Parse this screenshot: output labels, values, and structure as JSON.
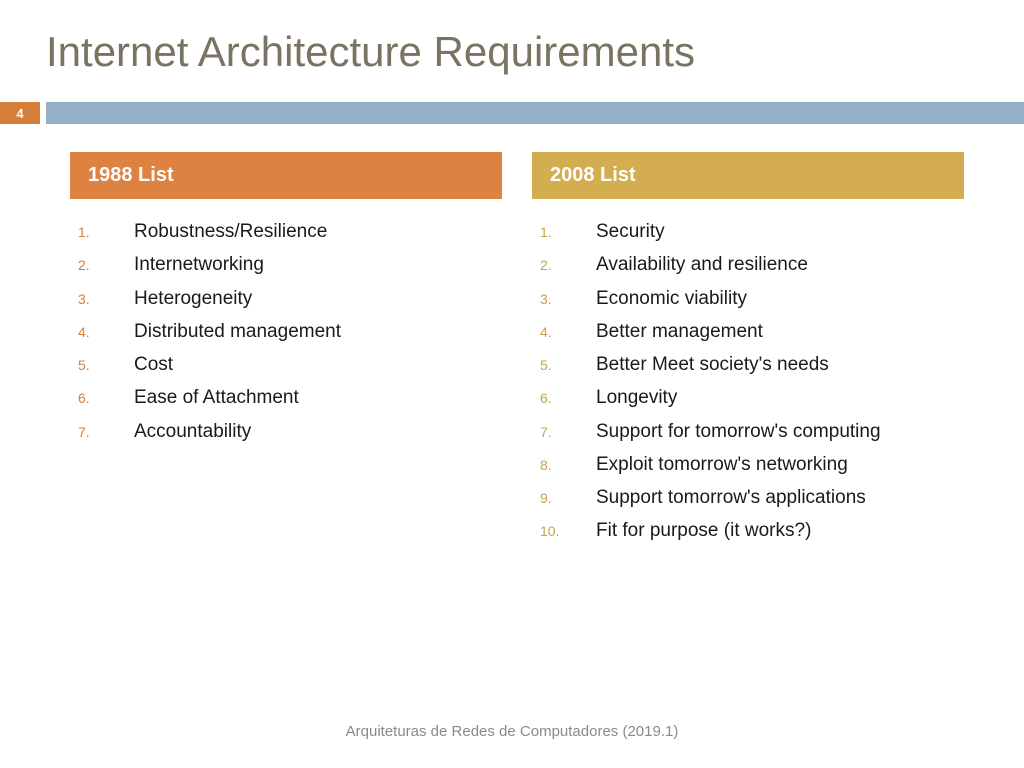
{
  "title": "Internet Architecture Requirements",
  "page_number": "4",
  "colors": {
    "title_text": "#7a7362",
    "page_num_bg": "#d57f3a",
    "divider_bg": "#94afc6",
    "header_orange": "#dd8241",
    "header_gold": "#d3ad4f",
    "list_marker_orange": "#d57f3a",
    "list_marker_gold": "#c9a246",
    "footer_text": "#8a8a8a"
  },
  "left": {
    "header": "1988 List",
    "items": [
      "Robustness/Resilience",
      "Internetworking",
      "Heterogeneity",
      "Distributed management",
      "Cost",
      "Ease of Attachment",
      "Accountability"
    ]
  },
  "right": {
    "header": "2008 List",
    "items": [
      "Security",
      "Availability and resilience",
      "Economic viability",
      "Better management",
      "Better Meet society's needs",
      "Longevity",
      "Support for tomorrow's computing",
      "Exploit tomorrow's networking",
      "Support tomorrow's applications",
      "Fit for purpose (it works?)"
    ]
  },
  "footer": "Arquiteturas de Redes de Computadores  (2019.1)"
}
